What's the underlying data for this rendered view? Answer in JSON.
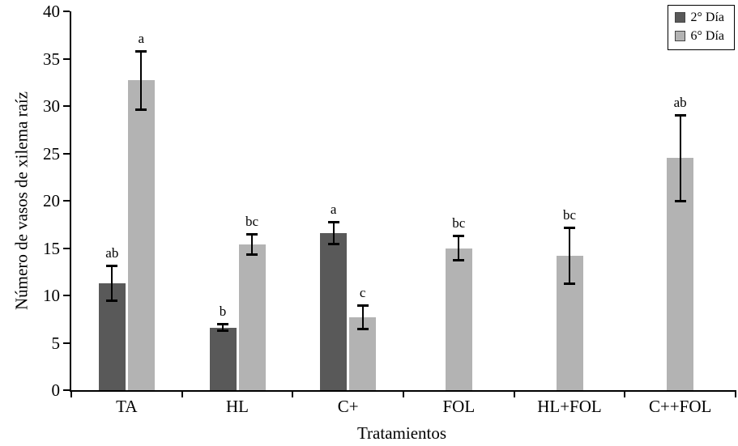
{
  "chart_data": {
    "type": "bar",
    "title": "",
    "xlabel": "Tratamientos",
    "ylabel": "Número de vasos de xilema raíz",
    "ylim": [
      0,
      40
    ],
    "ytick_step": 5,
    "yticks": [
      0,
      5,
      10,
      15,
      20,
      25,
      30,
      35,
      40
    ],
    "grid": false,
    "legend_position": "top-right",
    "axis_color": "#000000",
    "categories": [
      "TA",
      "HL",
      "C+",
      "FOL",
      "HL+FOL",
      "C++FOL"
    ],
    "series": [
      {
        "name": "2° Día",
        "color": "#595959",
        "values": [
          11.3,
          6.6,
          16.6,
          null,
          null,
          null
        ],
        "errors": [
          1.9,
          0.4,
          1.2,
          null,
          null,
          null
        ],
        "letters": [
          "ab",
          "b",
          "a",
          null,
          null,
          null
        ]
      },
      {
        "name": "6° Día",
        "color": "#b3b3b3",
        "values": [
          32.7,
          15.4,
          7.7,
          15.0,
          14.2,
          24.5
        ],
        "errors": [
          3.1,
          1.1,
          1.3,
          1.3,
          3.0,
          4.6
        ],
        "letters": [
          "a",
          "bc",
          "c",
          "bc",
          "bc",
          "ab"
        ]
      }
    ]
  }
}
